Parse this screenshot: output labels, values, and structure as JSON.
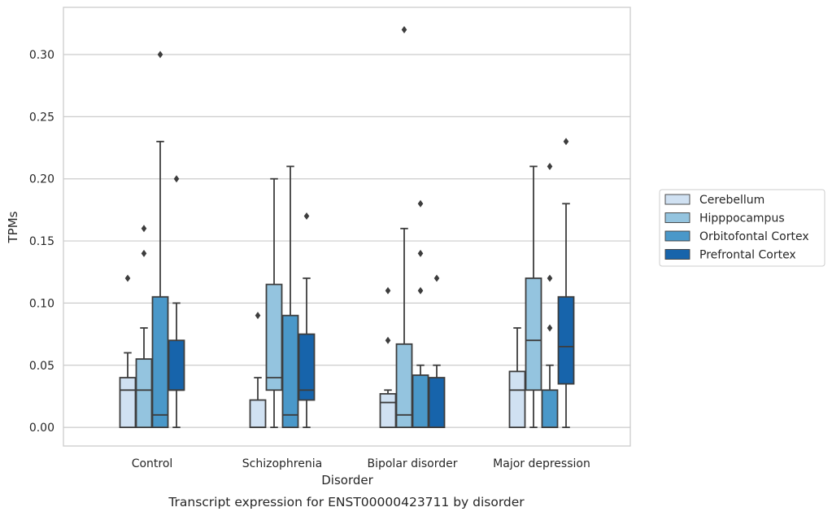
{
  "chart_data": {
    "type": "box",
    "caption": "Transcript expression for ENST00000423711 by disorder",
    "xlabel": "Disorder",
    "ylabel": "TPMs",
    "ylim": [
      -0.015,
      0.338
    ],
    "yticks": [
      "0.00",
      "0.05",
      "0.10",
      "0.15",
      "0.20",
      "0.25",
      "0.30"
    ],
    "grid": true,
    "legend_position": "right",
    "categories": [
      "Control",
      "Schizophrenia",
      "Bipolar disorder",
      "Major depression"
    ],
    "series": [
      {
        "name": "Cerebellum",
        "color": "#d0e1f2",
        "boxes": [
          {
            "whislo": 0.0,
            "q1": 0.0,
            "med": 0.03,
            "q3": 0.04,
            "whishi": 0.06,
            "fliers": [
              0.12
            ]
          },
          {
            "whislo": 0.0,
            "q1": 0.0,
            "med": 0.0,
            "q3": 0.022,
            "whishi": 0.04,
            "fliers": [
              0.09
            ]
          },
          {
            "whislo": 0.0,
            "q1": 0.0,
            "med": 0.02,
            "q3": 0.027,
            "whishi": 0.03,
            "fliers": [
              0.07,
              0.11
            ]
          },
          {
            "whislo": 0.0,
            "q1": 0.0,
            "med": 0.03,
            "q3": 0.045,
            "whishi": 0.08,
            "fliers": []
          }
        ]
      },
      {
        "name": "Hipppocampus",
        "color": "#94c4df",
        "boxes": [
          {
            "whislo": 0.0,
            "q1": 0.0,
            "med": 0.03,
            "q3": 0.055,
            "whishi": 0.08,
            "fliers": [
              0.14,
              0.16
            ]
          },
          {
            "whislo": 0.0,
            "q1": 0.03,
            "med": 0.04,
            "q3": 0.115,
            "whishi": 0.2,
            "fliers": []
          },
          {
            "whislo": 0.0,
            "q1": 0.0,
            "med": 0.01,
            "q3": 0.067,
            "whishi": 0.16,
            "fliers": [
              0.32
            ]
          },
          {
            "whislo": 0.0,
            "q1": 0.03,
            "med": 0.07,
            "q3": 0.12,
            "whishi": 0.21,
            "fliers": []
          }
        ]
      },
      {
        "name": "Orbitofontal Cortex",
        "color": "#4a98c9",
        "boxes": [
          {
            "whislo": 0.0,
            "q1": 0.0,
            "med": 0.01,
            "q3": 0.105,
            "whishi": 0.23,
            "fliers": [
              0.3
            ]
          },
          {
            "whislo": 0.0,
            "q1": 0.0,
            "med": 0.01,
            "q3": 0.09,
            "whishi": 0.21,
            "fliers": []
          },
          {
            "whislo": 0.0,
            "q1": 0.0,
            "med": 0.0,
            "q3": 0.042,
            "whishi": 0.05,
            "fliers": [
              0.11,
              0.14,
              0.18
            ]
          },
          {
            "whislo": 0.0,
            "q1": 0.0,
            "med": 0.0,
            "q3": 0.03,
            "whishi": 0.05,
            "fliers": [
              0.08,
              0.12,
              0.21
            ]
          }
        ]
      },
      {
        "name": "Prefrontal Cortex",
        "color": "#1764ab",
        "boxes": [
          {
            "whislo": 0.0,
            "q1": 0.03,
            "med": 0.03,
            "q3": 0.07,
            "whishi": 0.1,
            "fliers": [
              0.2
            ]
          },
          {
            "whislo": 0.0,
            "q1": 0.022,
            "med": 0.03,
            "q3": 0.075,
            "whishi": 0.12,
            "fliers": [
              0.17
            ]
          },
          {
            "whislo": 0.0,
            "q1": 0.0,
            "med": 0.0,
            "q3": 0.04,
            "whishi": 0.05,
            "fliers": [
              0.12
            ]
          },
          {
            "whislo": 0.0,
            "q1": 0.035,
            "med": 0.065,
            "q3": 0.105,
            "whishi": 0.18,
            "fliers": [
              0.23
            ]
          }
        ]
      }
    ]
  }
}
